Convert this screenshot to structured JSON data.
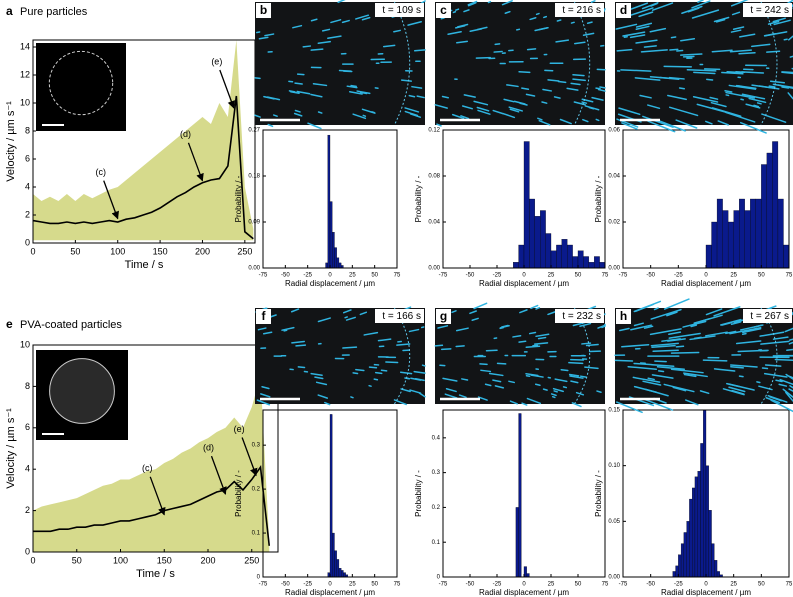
{
  "chart_data": [
    {
      "type": "line",
      "panel": "a",
      "title": "Pure particles",
      "xlabel": "Time / s",
      "ylabel": "Velocity / µm s⁻¹",
      "x": [
        0,
        10,
        20,
        30,
        40,
        50,
        60,
        70,
        80,
        90,
        100,
        110,
        120,
        130,
        140,
        150,
        160,
        170,
        180,
        190,
        200,
        210,
        220,
        230,
        240,
        250,
        260
      ],
      "line": {
        "color": "#000000",
        "values": [
          1.6,
          1.5,
          1.4,
          1.4,
          1.5,
          1.4,
          1.5,
          1.4,
          1.5,
          1.6,
          1.5,
          1.7,
          1.8,
          2.0,
          2.2,
          2.5,
          2.9,
          3.3,
          3.6,
          4.0,
          4.3,
          4.5,
          4.6,
          5.5,
          10.5,
          0.8,
          0.3
        ]
      },
      "band": {
        "color": "#d6da8c",
        "upper": [
          3.5,
          3,
          3.3,
          3,
          3.5,
          3,
          3.5,
          3.2,
          3.5,
          3.8,
          4,
          4.5,
          5,
          5.5,
          6,
          6.5,
          7,
          7.5,
          8,
          8.5,
          9,
          8.5,
          10,
          9,
          14.5,
          4,
          1
        ],
        "lower": [
          0.2,
          0.2,
          0.2,
          0.2,
          0.2,
          0.2,
          0.2,
          0.2,
          0.2,
          0.2,
          0.2,
          0.2,
          0.2,
          0.2,
          0.2,
          0.2,
          0.2,
          0.2,
          0.2,
          0.2,
          0.2,
          0.2,
          0.2,
          0.2,
          0.2,
          0.2,
          0.2
        ]
      },
      "xlim": [
        0,
        262
      ],
      "ylim": [
        0,
        14.5
      ],
      "xticks": [
        0,
        50,
        100,
        150,
        200,
        250
      ],
      "yticks": [
        0,
        2,
        4,
        6,
        8,
        10,
        12,
        14
      ],
      "annotations": [
        {
          "text": "(c)",
          "x": 100,
          "y": 1.6
        },
        {
          "text": "(d)",
          "x": 200,
          "y": 4.3
        },
        {
          "text": "(e)",
          "x": 237,
          "y": 9.5
        }
      ]
    },
    {
      "type": "histogram",
      "panel": "b",
      "image_label": "t = 109 s",
      "xlabel": "Radial displacement / µm",
      "ylabel": "Probability / -",
      "color": "#0a1a8c",
      "bins": [
        -5,
        -2.5,
        0,
        2.5,
        5,
        7.5,
        10,
        12.5,
        15
      ],
      "values": [
        0.01,
        0.26,
        0.13,
        0.07,
        0.04,
        0.02,
        0.01,
        0.005
      ],
      "xlim": [
        -75,
        75
      ],
      "ylim": [
        0,
        0.27
      ],
      "xticks": [
        -75,
        -50,
        -25,
        0,
        25,
        50,
        75
      ],
      "yticks": [
        {
          "value": 0,
          "label": "0.00"
        },
        0.09,
        0.18,
        0.27
      ]
    },
    {
      "type": "histogram",
      "panel": "c",
      "image_label": "t = 216 s",
      "xlabel": "Radial displacement / µm",
      "ylabel": "Probability / -",
      "color": "#0a1a8c",
      "bins": [
        -10,
        -5,
        0,
        5,
        10,
        15,
        20,
        25,
        30,
        35,
        40,
        45,
        50,
        55,
        60,
        65,
        70,
        75
      ],
      "values": [
        0.005,
        0.02,
        0.11,
        0.06,
        0.045,
        0.05,
        0.03,
        0.015,
        0.02,
        0.025,
        0.02,
        0.01,
        0.015,
        0.01,
        0.005,
        0.01,
        0.005
      ],
      "xlim": [
        -75,
        75
      ],
      "ylim": [
        0,
        0.12
      ],
      "xticks": [
        -75,
        -50,
        -25,
        0,
        25,
        50,
        75
      ],
      "yticks": [
        {
          "value": 0,
          "label": "0.00"
        },
        0.04,
        0.08,
        0.12
      ]
    },
    {
      "type": "histogram",
      "panel": "d",
      "image_label": "t = 242 s",
      "xlabel": "Radial displacement / µm",
      "ylabel": "Probability / -",
      "color": "#0a1a8c",
      "bins": [
        0,
        5,
        10,
        15,
        20,
        25,
        30,
        35,
        40,
        45,
        50,
        55,
        60,
        65,
        70,
        75
      ],
      "values": [
        0.01,
        0.02,
        0.03,
        0.025,
        0.02,
        0.025,
        0.03,
        0.025,
        0.03,
        0.03,
        0.045,
        0.05,
        0.055,
        0.03,
        0.01
      ],
      "xlim": [
        -75,
        75
      ],
      "ylim": [
        0,
        0.06
      ],
      "xticks": [
        -75,
        -50,
        -25,
        0,
        25,
        50,
        75
      ],
      "yticks": [
        {
          "value": 0,
          "label": "0.00"
        },
        0.02,
        0.04,
        0.06
      ]
    },
    {
      "type": "line",
      "panel": "e",
      "title": "PVA-coated particles",
      "xlabel": "Time / s",
      "ylabel": "Velocity / µm s⁻¹",
      "x": [
        0,
        10,
        20,
        30,
        40,
        50,
        60,
        70,
        80,
        90,
        100,
        110,
        120,
        130,
        140,
        150,
        160,
        170,
        180,
        190,
        200,
        210,
        220,
        230,
        240,
        250,
        260,
        270
      ],
      "line": {
        "color": "#000000",
        "values": [
          1.0,
          1.0,
          1.0,
          1.1,
          1.1,
          1.2,
          1.2,
          1.3,
          1.3,
          1.4,
          1.5,
          1.5,
          1.6,
          1.7,
          1.8,
          2.0,
          2.1,
          2.2,
          2.3,
          2.5,
          2.7,
          2.9,
          3.0,
          3.4,
          3.0,
          3.5,
          4.1,
          0.3
        ]
      },
      "band": {
        "color": "#d6da8c",
        "upper": [
          2,
          2.2,
          2.3,
          2.4,
          2.5,
          2.6,
          2.8,
          3,
          3.2,
          3.3,
          3.5,
          3.5,
          3.7,
          3.9,
          4,
          4.3,
          4.5,
          4.8,
          5,
          5.3,
          5.5,
          5.8,
          6,
          6.5,
          6,
          7,
          8.5,
          0.5
        ],
        "lower": [
          0,
          0,
          0,
          0,
          0,
          0,
          0,
          0,
          0,
          0,
          0,
          0,
          0,
          0,
          0,
          0,
          0,
          0,
          0,
          0,
          0,
          0,
          0,
          0,
          0,
          0,
          0,
          0
        ]
      },
      "xlim": [
        0,
        280
      ],
      "ylim": [
        0,
        10
      ],
      "xticks": [
        0,
        50,
        100,
        150,
        200,
        250
      ],
      "yticks": [
        0,
        2,
        4,
        6,
        8,
        10
      ],
      "annotations": [
        {
          "text": "(c)",
          "x": 150,
          "y": 1.7
        },
        {
          "text": "(d)",
          "x": 220,
          "y": 2.7
        },
        {
          "text": "(e)",
          "x": 255,
          "y": 3.6
        }
      ]
    },
    {
      "type": "histogram",
      "panel": "f",
      "image_label": "t = 166 s",
      "xlabel": "Radial displacement / µm",
      "ylabel": "Probability / -",
      "color": "#0a1a8c",
      "bins": [
        -2.5,
        0,
        2.5,
        5,
        7.5,
        10,
        12.5,
        15,
        17.5,
        20
      ],
      "values": [
        0.01,
        0.37,
        0.1,
        0.06,
        0.04,
        0.02,
        0.015,
        0.01,
        0.005
      ],
      "xlim": [
        -75,
        75
      ],
      "ylim": [
        0,
        0.38
      ],
      "xticks": [
        -75,
        -50,
        -25,
        0,
        25,
        50,
        75
      ],
      "yticks": [
        0,
        0.1,
        0.2,
        0.3
      ]
    },
    {
      "type": "histogram",
      "panel": "g",
      "image_label": "t = 232 s",
      "xlabel": "Radial displacement / µm",
      "ylabel": "Probability / -",
      "color": "#0a1a8c",
      "bins": [
        -7.5,
        -5,
        -2.5,
        0,
        2.5,
        5
      ],
      "values": [
        0.2,
        0.47,
        0,
        0.03,
        0.01
      ],
      "xlim": [
        -75,
        75
      ],
      "ylim": [
        0,
        0.48
      ],
      "xticks": [
        -75,
        -50,
        -25,
        0,
        25,
        50,
        75
      ],
      "yticks": [
        0,
        0.1,
        0.2,
        0.3,
        0.4
      ]
    },
    {
      "type": "histogram",
      "panel": "h",
      "image_label": "t = 267 s",
      "xlabel": "Radial displacement / µm",
      "ylabel": "Probability / -",
      "color": "#0a1a8c",
      "bins": [
        -30,
        -27.5,
        -25,
        -22.5,
        -20,
        -17.5,
        -15,
        -12.5,
        -10,
        -7.5,
        -5,
        -2.5,
        0,
        2.5,
        5,
        7.5,
        10,
        12.5,
        15
      ],
      "values": [
        0.005,
        0.01,
        0.02,
        0.03,
        0.04,
        0.05,
        0.07,
        0.08,
        0.09,
        0.095,
        0.12,
        0.15,
        0.1,
        0.06,
        0.03,
        0.015,
        0.005,
        0.002
      ],
      "xlim": [
        -75,
        75
      ],
      "ylim": [
        0,
        0.15
      ],
      "xticks": [
        -75,
        -50,
        -25,
        0,
        25,
        50,
        75
      ],
      "yticks": [
        {
          "value": 0,
          "label": "0.00"
        },
        {
          "value": 0.05,
          "label": "0.05"
        },
        {
          "value": 0.1,
          "label": "0.10"
        },
        {
          "value": 0.15,
          "label": "0.15"
        }
      ]
    }
  ]
}
